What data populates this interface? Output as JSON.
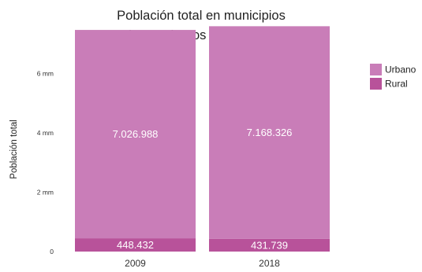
{
  "chart_data": {
    "type": "bar",
    "stacked": true,
    "title_lines": [
      "Población total en municipios",
      "rurales y urbanos (2009 vs 2018)"
    ],
    "xlabel": "",
    "ylabel": "Población total",
    "categories": [
      "2009",
      "2018"
    ],
    "series": [
      {
        "name": "Rural",
        "values": [
          448432,
          431739
        ],
        "labels": [
          "448.432",
          "431.739"
        ],
        "color": "#b8529a"
      },
      {
        "name": "Urbano",
        "values": [
          7026988,
          7168326
        ],
        "labels": [
          "7.026.988",
          "7.168.326"
        ],
        "color": "#c97db8"
      }
    ],
    "legend_order": [
      "Urbano",
      "Rural"
    ],
    "yticks": [
      0,
      2000000,
      4000000,
      6000000
    ],
    "ytick_labels": [
      "0",
      "2 mm",
      "4 mm",
      "6 mm"
    ],
    "ylim": [
      0,
      7800000
    ],
    "grid": false,
    "legend_position": "top-right"
  }
}
